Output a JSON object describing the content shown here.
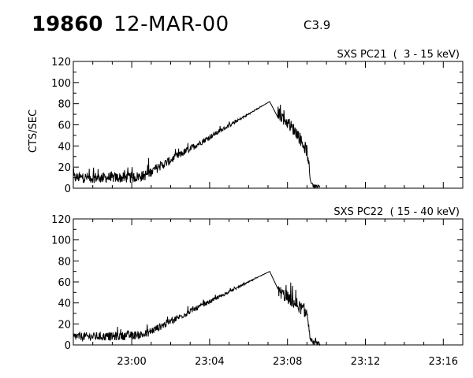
{
  "header": {
    "event_id": "19860",
    "date": "12-MAR-00",
    "flare_class": "C3.9"
  },
  "chart_data": [
    {
      "type": "line",
      "title": "SXS PC21  (  3 - 15 keV)",
      "ylabel": "CTS/SEC",
      "xlabel": "",
      "ylim": [
        0,
        120
      ],
      "yticks": [
        0,
        20,
        40,
        60,
        80,
        100,
        120
      ],
      "xlim": [
        "22:57:00",
        "23:17:00"
      ],
      "xticks": [
        "23:00",
        "23:04",
        "23:08",
        "23:12",
        "23:16"
      ],
      "show_xtick_labels": false,
      "grid": false,
      "series": [
        {
          "x": [
            "22:57:00",
            "22:58:00",
            "22:59:00",
            "23:00:00",
            "23:00:40",
            "23:07:05",
            "23:07:30",
            "23:08:00",
            "23:08:30",
            "23:09:00",
            "23:09:10",
            "23:09:20",
            "23:09:40"
          ],
          "y": [
            10,
            10,
            10,
            10,
            12,
            82,
            72,
            62,
            52,
            35,
            8,
            2,
            1
          ],
          "noise": [
            5,
            5,
            5,
            5,
            5,
            0,
            6,
            6,
            6,
            6,
            2,
            2,
            2
          ]
        }
      ]
    },
    {
      "type": "line",
      "title": "SXS PC22  ( 15 - 40 keV)",
      "ylabel": "",
      "xlabel": "",
      "ylim": [
        0,
        120
      ],
      "yticks": [
        0,
        20,
        40,
        60,
        80,
        100,
        120
      ],
      "xlim": [
        "22:57:00",
        "23:17:00"
      ],
      "xticks": [
        "23:00",
        "23:04",
        "23:08",
        "23:12",
        "23:16"
      ],
      "show_xtick_labels": true,
      "grid": false,
      "series": [
        {
          "x": [
            "22:57:00",
            "22:58:00",
            "22:59:00",
            "23:00:00",
            "23:00:40",
            "23:07:05",
            "23:07:30",
            "23:08:00",
            "23:08:30",
            "23:09:00",
            "23:09:10",
            "23:09:20",
            "23:09:40"
          ],
          "y": [
            8,
            8,
            8,
            9,
            10,
            70,
            52,
            45,
            38,
            30,
            6,
            2,
            1
          ],
          "noise": [
            4,
            4,
            4,
            4,
            4,
            0,
            6,
            6,
            6,
            6,
            2,
            2,
            2
          ]
        }
      ]
    }
  ]
}
